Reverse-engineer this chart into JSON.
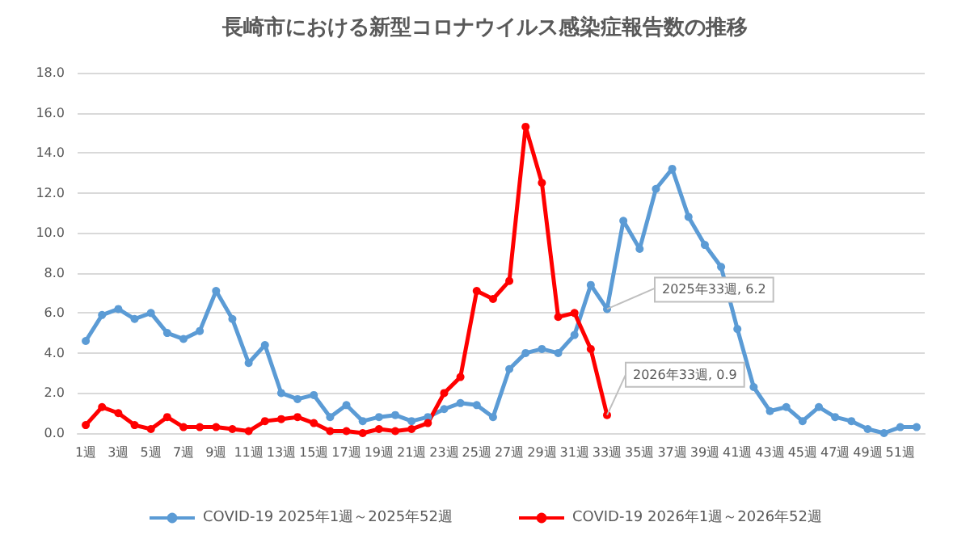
{
  "chart_data": {
    "type": "line",
    "title": "長崎市における新型コロナウイルス感染症報告数の推移",
    "categories": [
      "1週",
      null,
      "3週",
      null,
      "5週",
      null,
      "7週",
      null,
      "9週",
      null,
      "11週",
      null,
      "13週",
      null,
      "15週",
      null,
      "17週",
      null,
      "19週",
      null,
      "21週",
      null,
      "23週",
      null,
      "25週",
      null,
      "27週",
      null,
      "29週",
      null,
      "31週",
      null,
      "33週",
      null,
      "35週",
      null,
      "37週",
      null,
      "39週",
      null,
      "41週",
      null,
      "43週",
      null,
      "45週",
      null,
      "47週",
      null,
      "49週",
      null,
      "51週",
      null
    ],
    "series": [
      {
        "name": "COVID-19 2025年1週～2025年52週",
        "color": "#5b9bd5",
        "values": [
          4.6,
          5.9,
          6.2,
          5.7,
          6.0,
          5.0,
          4.7,
          5.1,
          7.1,
          5.7,
          3.5,
          4.4,
          2.0,
          1.7,
          1.9,
          0.8,
          1.4,
          0.6,
          0.8,
          0.9,
          0.6,
          0.8,
          1.2,
          1.5,
          1.4,
          0.8,
          3.2,
          4.0,
          4.2,
          4.0,
          4.9,
          7.4,
          6.2,
          10.6,
          9.2,
          12.2,
          13.2,
          10.8,
          9.4,
          8.3,
          5.2,
          2.3,
          1.1,
          1.3,
          0.6,
          1.3,
          0.8,
          0.6,
          0.2,
          0.0,
          0.3,
          0.3
        ]
      },
      {
        "name": "COVID-19 2026年1週～2026年52週",
        "color": "#ff0000",
        "values": [
          0.4,
          1.3,
          1.0,
          0.4,
          0.2,
          0.8,
          0.3,
          0.3,
          0.3,
          0.2,
          0.1,
          0.6,
          0.7,
          0.8,
          0.5,
          0.1,
          0.1,
          0.0,
          0.2,
          0.1,
          0.2,
          0.5,
          2.0,
          2.8,
          7.1,
          6.7,
          7.6,
          15.3,
          12.5,
          5.8,
          6.0,
          4.2,
          0.9,
          null,
          null,
          null,
          null,
          null,
          null,
          null,
          null,
          null,
          null,
          null,
          null,
          null,
          null,
          null,
          null,
          null,
          null,
          null
        ]
      }
    ],
    "ylim": [
      0,
      18
    ],
    "yticks": [
      {
        "value": 0,
        "label": "0.0"
      },
      {
        "value": 2,
        "label": "2.0"
      },
      {
        "value": 4,
        "label": "4.0"
      },
      {
        "value": 6,
        "label": "6.0"
      },
      {
        "value": 8,
        "label": "8.0"
      },
      {
        "value": 10,
        "label": "10.0"
      },
      {
        "value": 12,
        "label": "12.0"
      },
      {
        "value": 14,
        "label": "14.0"
      },
      {
        "value": 16,
        "label": "16.0"
      },
      {
        "value": 18,
        "label": "18.0"
      }
    ],
    "grid": "y",
    "legend": "bottom",
    "marker": "circle",
    "line_style": "solid",
    "annotations": [
      {
        "text": "2025年33週, 6.2",
        "x": "33週",
        "y": 6.2
      },
      {
        "text": "2026年33週, 0.9",
        "x": "33週",
        "y": 0.9
      }
    ]
  }
}
